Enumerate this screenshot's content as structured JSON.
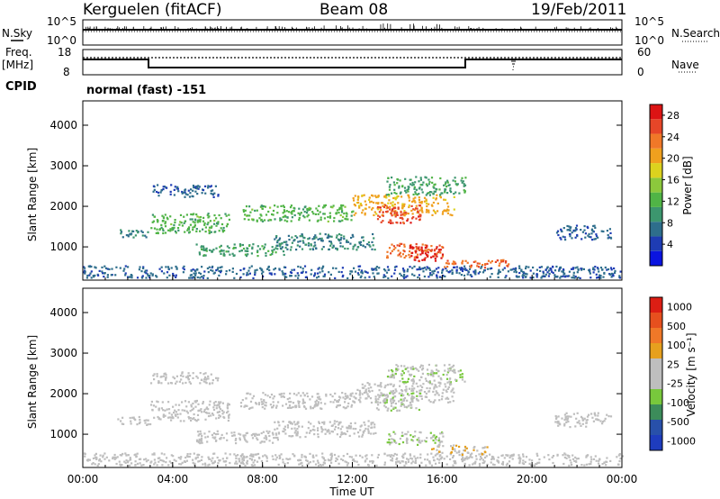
{
  "header": {
    "station": "Kerguelen (fitACF)",
    "beam": "Beam 08",
    "date": "19/Feb/2011"
  },
  "left_labels": {
    "nsky": "N.Sky",
    "freq_line1": "Freq.",
    "freq_line2": "[MHz]",
    "cpid": "CPID"
  },
  "right_labels": {
    "nsearch": "N.Search",
    "nave": "Nave"
  },
  "cpid_text": "normal (fast) -151",
  "noise_axis": {
    "left_ticks": [
      "10^5",
      "10^0"
    ],
    "right_ticks": [
      "10^5",
      "10^0"
    ]
  },
  "freq_axis": {
    "left_ticks": [
      "18",
      "8"
    ],
    "right_ticks": [
      "60",
      "0"
    ]
  },
  "colors": {
    "power_scale": [
      "#0a14e0",
      "#1e3cb4",
      "#2e6e8c",
      "#3c966e",
      "#50b446",
      "#8cc83c",
      "#dcd21e",
      "#f0a01e",
      "#f07828",
      "#e64628",
      "#dc1414"
    ],
    "velocity_scale": [
      "#1e3cbe",
      "#2850aa",
      "#3c8c5a",
      "#78c83c",
      "#bebebe",
      "#bebebe",
      "#e6a01e",
      "#f07828",
      "#e6501e",
      "#dc1e14"
    ]
  },
  "chart_data": [
    {
      "type": "heatmap",
      "panel": "power",
      "xlabel": "",
      "ylabel": "Slant Range [km]",
      "xlim": [
        "00:00",
        "24:00"
      ],
      "ylim": [
        180,
        4600
      ],
      "yticks": [
        "1000",
        "2000",
        "3000",
        "4000"
      ],
      "colorbar": {
        "label": "Power [dB]",
        "ticks": [
          "4",
          "8",
          "12",
          "16",
          "20",
          "24",
          "28"
        ],
        "range": [
          0,
          30
        ]
      },
      "echo_regions": [
        {
          "t_start": 0.0,
          "t_end": 24.0,
          "r_low": 250,
          "r_high": 550,
          "value": 6
        },
        {
          "t_start": 1.5,
          "t_end": 3.0,
          "r_low": 1250,
          "r_high": 1450,
          "value": 8
        },
        {
          "t_start": 3.0,
          "t_end": 6.5,
          "r_low": 1350,
          "r_high": 1850,
          "value": 12
        },
        {
          "t_start": 3.0,
          "t_end": 6.0,
          "r_low": 2250,
          "r_high": 2550,
          "value": 6
        },
        {
          "t_start": 5.0,
          "t_end": 9.0,
          "r_low": 800,
          "r_high": 1100,
          "value": 10
        },
        {
          "t_start": 8.5,
          "t_end": 13.0,
          "r_low": 950,
          "r_high": 1350,
          "value": 8
        },
        {
          "t_start": 7.0,
          "t_end": 12.0,
          "r_low": 1650,
          "r_high": 2050,
          "value": 12
        },
        {
          "t_start": 12.0,
          "t_end": 16.5,
          "r_low": 1800,
          "r_high": 2300,
          "value": 20
        },
        {
          "t_start": 13.0,
          "t_end": 15.0,
          "r_low": 1600,
          "r_high": 2050,
          "value": 26
        },
        {
          "t_start": 13.5,
          "t_end": 17.0,
          "r_low": 2300,
          "r_high": 2750,
          "value": 10
        },
        {
          "t_start": 13.5,
          "t_end": 16.0,
          "r_low": 750,
          "r_high": 1100,
          "value": 24
        },
        {
          "t_start": 14.5,
          "t_end": 16.0,
          "r_low": 650,
          "r_high": 1050,
          "value": 28
        },
        {
          "t_start": 16.0,
          "t_end": 19.0,
          "r_low": 500,
          "r_high": 700,
          "value": 24
        },
        {
          "t_start": 21.0,
          "t_end": 23.5,
          "r_low": 1200,
          "r_high": 1550,
          "value": 6
        }
      ]
    },
    {
      "type": "heatmap",
      "panel": "velocity",
      "xlabel": "Time UT",
      "ylabel": "Slant Range [km]",
      "xticks": [
        "00:00",
        "04:00",
        "08:00",
        "12:00",
        "16:00",
        "20:00",
        "00:00"
      ],
      "ylim": [
        180,
        4600
      ],
      "yticks": [
        "1000",
        "2000",
        "3000",
        "4000"
      ],
      "colorbar": {
        "label": "Velocity [m s⁻¹]",
        "ticks": [
          "1000",
          "500",
          "100",
          "25",
          "-25",
          "-100",
          "-500",
          "-1000"
        ],
        "range": [
          -1250,
          1250
        ]
      },
      "echo_regions": [
        {
          "t_start": 0.0,
          "t_end": 24.0,
          "r_low": 250,
          "r_high": 550,
          "value": -60
        },
        {
          "t_start": 1.5,
          "t_end": 3.0,
          "r_low": 1250,
          "r_high": 1450,
          "value": 60
        },
        {
          "t_start": 3.0,
          "t_end": 6.5,
          "r_low": 1350,
          "r_high": 1850,
          "value": 0
        },
        {
          "t_start": 3.0,
          "t_end": 6.0,
          "r_low": 2250,
          "r_high": 2550,
          "value": 0
        },
        {
          "t_start": 5.0,
          "t_end": 9.0,
          "r_low": 800,
          "r_high": 1100,
          "value": -60
        },
        {
          "t_start": 8.5,
          "t_end": 13.0,
          "r_low": 950,
          "r_high": 1350,
          "value": 0
        },
        {
          "t_start": 7.0,
          "t_end": 12.0,
          "r_low": 1650,
          "r_high": 2050,
          "value": 0
        },
        {
          "t_start": 12.0,
          "t_end": 16.5,
          "r_low": 1800,
          "r_high": 2300,
          "value": 0
        },
        {
          "t_start": 13.0,
          "t_end": 15.0,
          "r_low": 1600,
          "r_high": 2050,
          "value": -200
        },
        {
          "t_start": 13.5,
          "t_end": 17.0,
          "r_low": 2300,
          "r_high": 2750,
          "value": -200
        },
        {
          "t_start": 13.5,
          "t_end": 16.0,
          "r_low": 750,
          "r_high": 1100,
          "value": -200
        },
        {
          "t_start": 15.5,
          "t_end": 18.0,
          "r_low": 500,
          "r_high": 750,
          "value": 200
        },
        {
          "t_start": 21.0,
          "t_end": 23.5,
          "r_low": 1200,
          "r_high": 1550,
          "value": 0
        }
      ]
    }
  ]
}
